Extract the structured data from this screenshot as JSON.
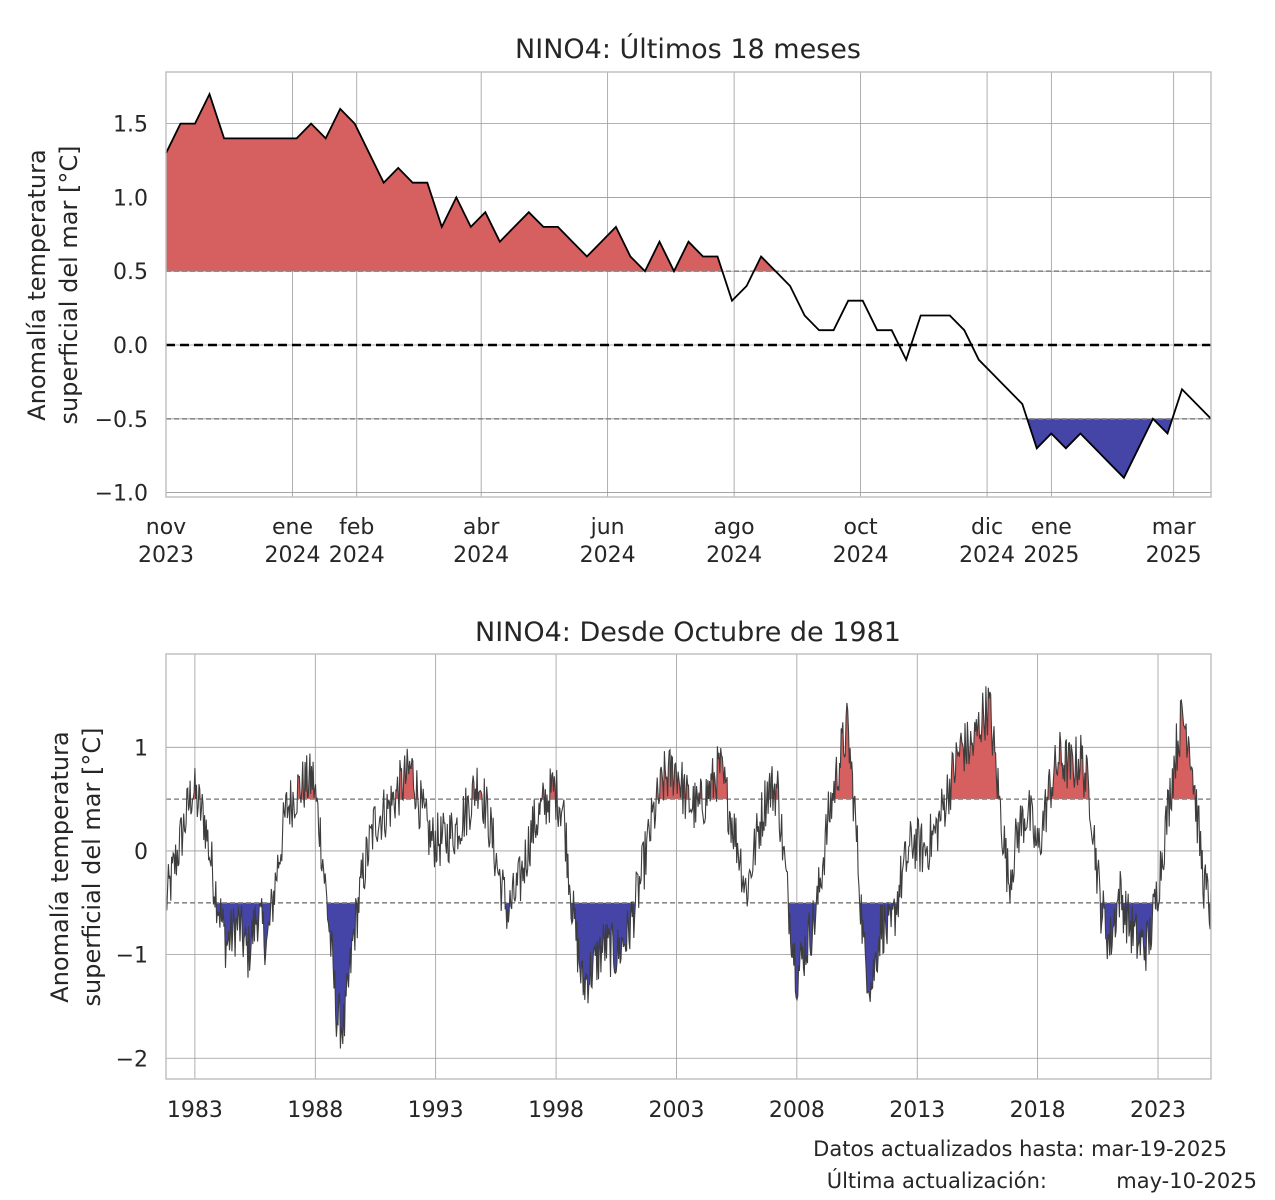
{
  "chart_data": [
    {
      "type": "area",
      "title": "NINO4: Últimos 18 meses",
      "ylabel_line1": "Anomalía temperatura",
      "ylabel_line2": "superficial del mar [°C]",
      "x_start": "2023-11-01",
      "x_end": "2025-03-19",
      "ylim": [
        -1.03,
        1.85
      ],
      "yticks": [
        {
          "v": 1.5,
          "label": "1.5"
        },
        {
          "v": 1.0,
          "label": "1.0"
        },
        {
          "v": 0.5,
          "label": "0.5"
        },
        {
          "v": 0.0,
          "label": "0.0"
        },
        {
          "v": -0.5,
          "label": "−0.5"
        },
        {
          "v": -1.0,
          "label": "−1.0"
        }
      ],
      "xticks": [
        {
          "date": "2023-11-01",
          "line1": "nov",
          "line2": "2023"
        },
        {
          "date": "2024-01-01",
          "line1": "ene",
          "line2": "2024"
        },
        {
          "date": "2024-02-01",
          "line1": "feb",
          "line2": "2024"
        },
        {
          "date": "2024-04-01",
          "line1": "abr",
          "line2": "2024"
        },
        {
          "date": "2024-06-01",
          "line1": "jun",
          "line2": "2024"
        },
        {
          "date": "2024-08-01",
          "line1": "ago",
          "line2": "2024"
        },
        {
          "date": "2024-10-01",
          "line1": "oct",
          "line2": "2024"
        },
        {
          "date": "2024-12-01",
          "line1": "dic",
          "line2": "2024"
        },
        {
          "date": "2025-01-01",
          "line1": "ene",
          "line2": "2025"
        },
        {
          "date": "2025-03-01",
          "line1": "mar",
          "line2": "2025"
        }
      ],
      "thresholds": [
        0.5,
        -0.5
      ],
      "zero_line": 0.0,
      "grid": true,
      "series": [
        {
          "x": [
            "2023-11-01",
            "2023-11-08",
            "2023-11-15",
            "2023-11-22",
            "2023-11-29",
            "2023-12-06",
            "2023-12-13",
            "2023-12-20",
            "2023-12-27",
            "2024-01-03",
            "2024-01-10",
            "2024-01-17",
            "2024-01-24",
            "2024-01-31",
            "2024-02-07",
            "2024-02-14",
            "2024-02-21",
            "2024-02-28",
            "2024-03-06",
            "2024-03-13",
            "2024-03-20",
            "2024-03-27",
            "2024-04-03",
            "2024-04-10",
            "2024-04-17",
            "2024-04-24",
            "2024-05-01",
            "2024-05-08",
            "2024-05-15",
            "2024-05-22",
            "2024-05-29",
            "2024-06-05",
            "2024-06-12",
            "2024-06-19",
            "2024-06-26",
            "2024-07-03",
            "2024-07-10",
            "2024-07-17",
            "2024-07-24",
            "2024-07-31",
            "2024-08-07",
            "2024-08-14",
            "2024-08-21",
            "2024-08-28",
            "2024-09-04",
            "2024-09-11",
            "2024-09-18",
            "2024-09-25",
            "2024-10-02",
            "2024-10-09",
            "2024-10-16",
            "2024-10-23",
            "2024-10-30",
            "2024-11-06",
            "2024-11-13",
            "2024-11-20",
            "2024-11-27",
            "2024-12-04",
            "2024-12-11",
            "2024-12-18",
            "2024-12-25",
            "2025-01-01",
            "2025-01-08",
            "2025-01-15",
            "2025-01-22",
            "2025-01-29",
            "2025-02-05",
            "2025-02-12",
            "2025-02-19",
            "2025-02-26",
            "2025-03-05",
            "2025-03-12",
            "2025-03-19"
          ],
          "values": [
            1.3,
            1.5,
            1.5,
            1.7,
            1.4,
            1.4,
            1.4,
            1.4,
            1.4,
            1.4,
            1.5,
            1.4,
            1.6,
            1.5,
            1.3,
            1.1,
            1.2,
            1.1,
            1.1,
            0.8,
            1.0,
            0.8,
            0.9,
            0.7,
            0.8,
            0.9,
            0.8,
            0.8,
            0.7,
            0.6,
            0.7,
            0.8,
            0.6,
            0.5,
            0.7,
            0.5,
            0.7,
            0.6,
            0.6,
            0.3,
            0.4,
            0.6,
            0.5,
            0.4,
            0.2,
            0.1,
            0.1,
            0.3,
            0.3,
            0.1,
            0.1,
            -0.1,
            0.2,
            0.2,
            0.2,
            0.1,
            -0.1,
            -0.2,
            -0.3,
            -0.4,
            -0.7,
            -0.6,
            -0.7,
            -0.6,
            -0.7,
            -0.8,
            -0.9,
            -0.7,
            -0.5,
            -0.6,
            -0.3,
            -0.4,
            -0.5
          ]
        }
      ],
      "colors": {
        "warm": "#d65f5f",
        "cold": "#4545a8",
        "line": "#000000"
      }
    },
    {
      "type": "area",
      "title": "NINO4: Desde Octubre de 1981",
      "ylabel_line1": "Anomalía temperatura",
      "ylabel_line2": "superficial del mar [°C]",
      "xlim": [
        1981.8,
        2025.2
      ],
      "ylim": [
        -2.2,
        1.9
      ],
      "yticks": [
        {
          "v": 1,
          "label": "1"
        },
        {
          "v": 0,
          "label": "0"
        },
        {
          "v": -1,
          "label": "−1"
        },
        {
          "v": -2,
          "label": "−2"
        }
      ],
      "xticks": [
        {
          "v": 1983,
          "label": "1983"
        },
        {
          "v": 1988,
          "label": "1988"
        },
        {
          "v": 1993,
          "label": "1993"
        },
        {
          "v": 1998,
          "label": "1998"
        },
        {
          "v": 2003,
          "label": "2003"
        },
        {
          "v": 2008,
          "label": "2008"
        },
        {
          "v": 2013,
          "label": "2013"
        },
        {
          "v": 2018,
          "label": "2018"
        },
        {
          "v": 2023,
          "label": "2023"
        }
      ],
      "thresholds": [
        0.5,
        -0.5
      ],
      "grid": true,
      "anchors": [
        [
          1981.8,
          -0.5
        ],
        [
          1982.3,
          0.0
        ],
        [
          1982.9,
          0.6
        ],
        [
          1983.4,
          0.3
        ],
        [
          1983.8,
          -0.3
        ],
        [
          1984.3,
          -0.9
        ],
        [
          1984.8,
          -0.7
        ],
        [
          1985.2,
          -1.0
        ],
        [
          1985.6,
          -0.6
        ],
        [
          1986.0,
          -0.9
        ],
        [
          1986.4,
          -0.2
        ],
        [
          1986.8,
          0.4
        ],
        [
          1987.3,
          0.6
        ],
        [
          1987.9,
          0.7
        ],
        [
          1988.2,
          0.2
        ],
        [
          1988.6,
          -0.8
        ],
        [
          1988.9,
          -1.6
        ],
        [
          1989.2,
          -1.7
        ],
        [
          1989.6,
          -0.8
        ],
        [
          1990.0,
          -0.2
        ],
        [
          1990.5,
          0.3
        ],
        [
          1991.0,
          0.4
        ],
        [
          1991.5,
          0.6
        ],
        [
          1992.0,
          0.8
        ],
        [
          1992.4,
          0.4
        ],
        [
          1992.8,
          0.1
        ],
        [
          1993.3,
          0.1
        ],
        [
          1993.8,
          0.2
        ],
        [
          1994.3,
          0.4
        ],
        [
          1994.8,
          0.7
        ],
        [
          1995.2,
          0.3
        ],
        [
          1995.6,
          -0.2
        ],
        [
          1996.0,
          -0.6
        ],
        [
          1996.5,
          -0.3
        ],
        [
          1997.0,
          0.2
        ],
        [
          1997.4,
          0.4
        ],
        [
          1997.9,
          0.6
        ],
        [
          1998.3,
          0.4
        ],
        [
          1998.7,
          -0.6
        ],
        [
          1999.1,
          -1.3
        ],
        [
          1999.6,
          -1.1
        ],
        [
          2000.0,
          -0.9
        ],
        [
          2000.5,
          -1.0
        ],
        [
          2001.0,
          -0.8
        ],
        [
          2001.5,
          -0.3
        ],
        [
          2002.0,
          0.3
        ],
        [
          2002.5,
          0.7
        ],
        [
          2003.0,
          0.8
        ],
        [
          2003.4,
          0.5
        ],
        [
          2003.9,
          0.4
        ],
        [
          2004.4,
          0.6
        ],
        [
          2004.8,
          0.8
        ],
        [
          2005.2,
          0.4
        ],
        [
          2005.6,
          0.0
        ],
        [
          2005.9,
          -0.4
        ],
        [
          2006.4,
          0.2
        ],
        [
          2006.8,
          0.6
        ],
        [
          2007.2,
          0.6
        ],
        [
          2007.6,
          -0.4
        ],
        [
          2008.0,
          -1.2
        ],
        [
          2008.4,
          -0.9
        ],
        [
          2008.8,
          -0.6
        ],
        [
          2009.3,
          0.3
        ],
        [
          2009.8,
          0.9
        ],
        [
          2010.1,
          1.2
        ],
        [
          2010.4,
          0.4
        ],
        [
          2010.8,
          -1.0
        ],
        [
          2011.1,
          -1.3
        ],
        [
          2011.5,
          -0.7
        ],
        [
          2011.9,
          -0.8
        ],
        [
          2012.3,
          -0.3
        ],
        [
          2012.8,
          0.1
        ],
        [
          2013.3,
          0.0
        ],
        [
          2013.8,
          0.2
        ],
        [
          2014.3,
          0.6
        ],
        [
          2014.8,
          1.0
        ],
        [
          2015.3,
          1.0
        ],
        [
          2015.7,
          1.3
        ],
        [
          2016.0,
          1.4
        ],
        [
          2016.4,
          0.5
        ],
        [
          2016.8,
          -0.3
        ],
        [
          2017.2,
          0.2
        ],
        [
          2017.6,
          0.4
        ],
        [
          2018.0,
          0.0
        ],
        [
          2018.5,
          0.6
        ],
        [
          2018.9,
          0.9
        ],
        [
          2019.4,
          0.8
        ],
        [
          2019.8,
          0.9
        ],
        [
          2020.2,
          0.5
        ],
        [
          2020.6,
          -0.5
        ],
        [
          2021.0,
          -0.9
        ],
        [
          2021.4,
          -0.4
        ],
        [
          2021.8,
          -0.7
        ],
        [
          2022.2,
          -0.9
        ],
        [
          2022.6,
          -0.9
        ],
        [
          2022.9,
          -0.5
        ],
        [
          2023.3,
          0.2
        ],
        [
          2023.7,
          0.9
        ],
        [
          2024.0,
          1.3
        ],
        [
          2024.3,
          1.1
        ],
        [
          2024.6,
          0.4
        ],
        [
          2024.9,
          -0.3
        ],
        [
          2025.2,
          -0.6
        ]
      ],
      "colors": {
        "warm": "#d65f5f",
        "cold": "#4545a8",
        "line": "#3d3d3d"
      }
    }
  ],
  "footer": {
    "datos_label": "Datos actualizados hasta: mar-19-2025",
    "update_label": "Última actualización:",
    "update_date": "may-10-2025"
  }
}
